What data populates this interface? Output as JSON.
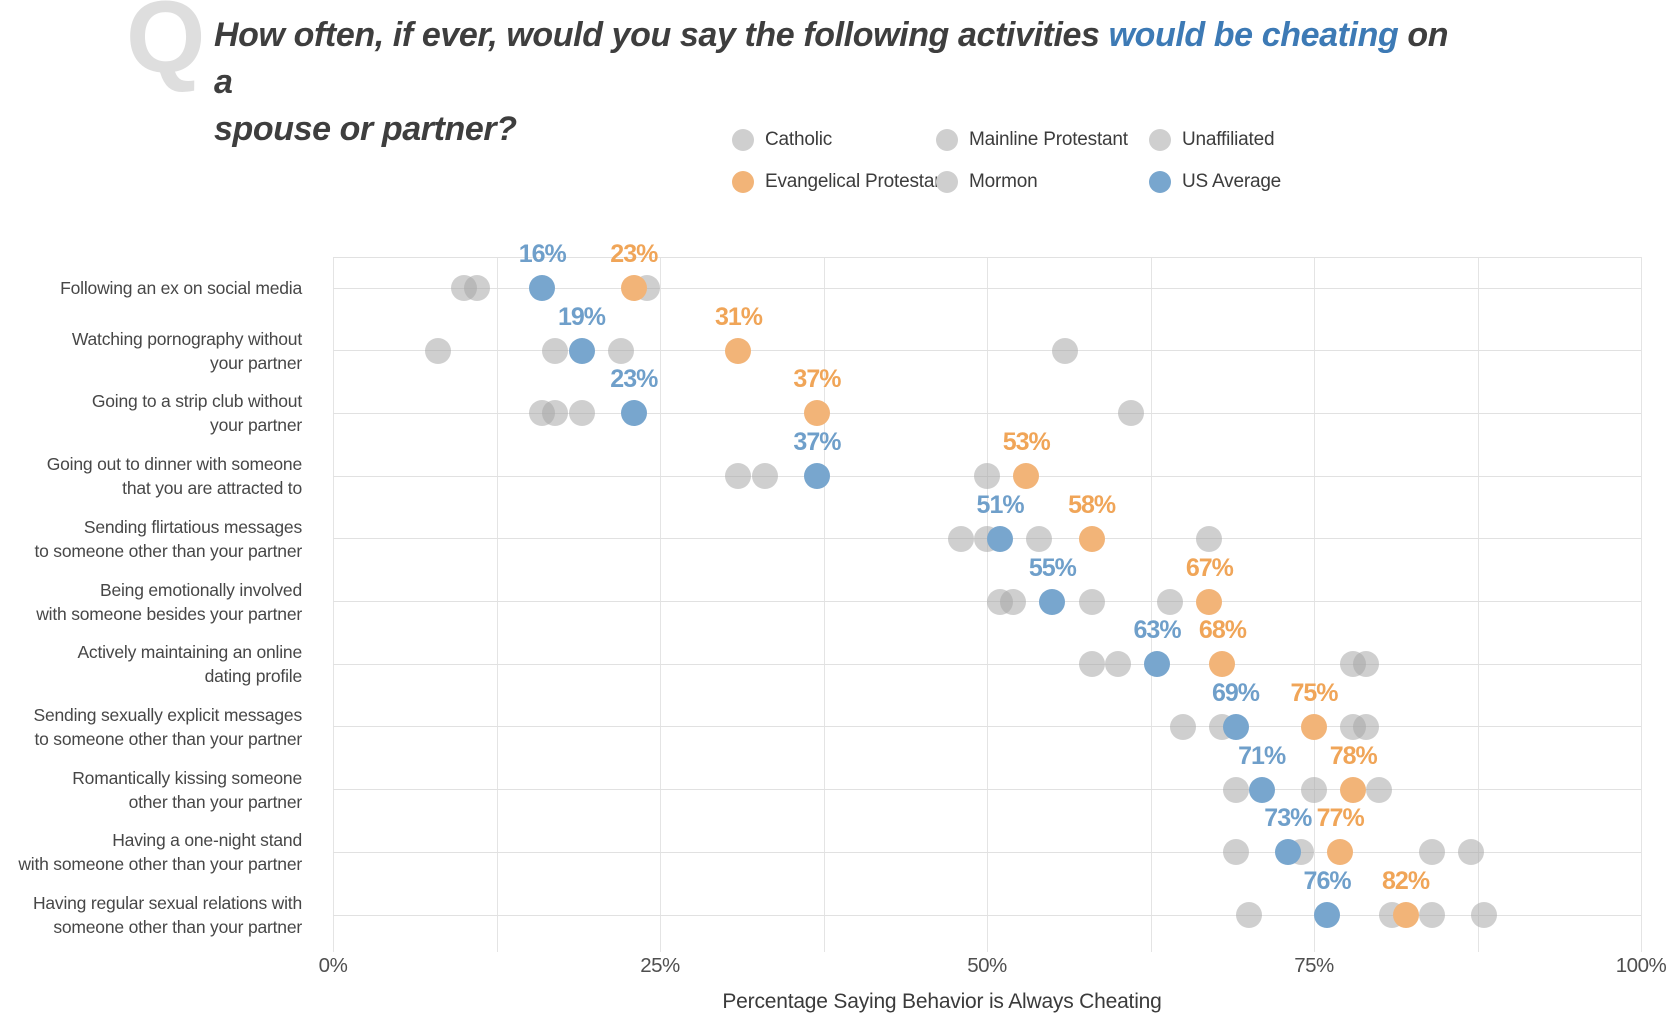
{
  "header": {
    "q_mark": "Q",
    "title_before": "How often, if ever, would you say the following activities ",
    "title_highlight": "would be cheating",
    "title_after": " on a",
    "title_line2": "spouse or partner?"
  },
  "colors": {
    "us_average_blue": "#78a6ce",
    "evangelical_orange": "#f2b478",
    "religious_group_gray": "#cfcfcf",
    "title_highlight_blue": "#3d7ab5",
    "value_label_blue": "#6f9fca",
    "value_label_orange": "#f0a558",
    "gridline": "#e4e4e4",
    "q_mark_gray": "#dedede"
  },
  "legend": {
    "items": [
      {
        "label": "Catholic",
        "color": "gray"
      },
      {
        "label": "Mainline Protestant",
        "color": "gray"
      },
      {
        "label": "Unaffiliated",
        "color": "gray"
      },
      {
        "label": "Evangelical Protestant",
        "color": "orange"
      },
      {
        "label": "Mormon",
        "color": "gray"
      },
      {
        "label": "US Average",
        "color": "blue"
      }
    ]
  },
  "chart_data": {
    "type": "scatter",
    "subtype": "dot-plot",
    "title": "How often, if ever, would you say the following activities would be cheating on a spouse or partner?",
    "xlabel": "Percentage Saying Behavior is Always Cheating",
    "xlim": [
      0,
      100
    ],
    "gridline_step_pct": 12.5,
    "grid": true,
    "legend_position": "top",
    "x_ticks": [
      {
        "label": "0%",
        "value": 0
      },
      {
        "label": "25%",
        "value": 25
      },
      {
        "label": "50%",
        "value": 50
      },
      {
        "label": "75%",
        "value": 75
      },
      {
        "label": "100%",
        "value": 100
      }
    ],
    "series_meta": [
      {
        "name": "US Average",
        "color": "blue",
        "labeled": true
      },
      {
        "name": "Evangelical Protestant",
        "color": "orange",
        "labeled": true
      },
      {
        "name": "Catholic / Mainline Protestant / Mormon / Unaffiliated",
        "color": "gray",
        "labeled": false
      }
    ],
    "rows": [
      {
        "label_lines": [
          "Following an ex on social media"
        ],
        "us_average": 16,
        "evangelical_protestant": 23,
        "gray_dot_values": [
          10,
          11,
          24
        ]
      },
      {
        "label_lines": [
          "Watching pornography without",
          "your partner"
        ],
        "us_average": 19,
        "evangelical_protestant": 31,
        "gray_dot_values": [
          8,
          17,
          22,
          56
        ]
      },
      {
        "label_lines": [
          "Going to a strip club without",
          "your partner"
        ],
        "us_average": 23,
        "evangelical_protestant": 37,
        "gray_dot_values": [
          16,
          17,
          19,
          61
        ]
      },
      {
        "label_lines": [
          "Going out to dinner with someone",
          "that you are attracted to"
        ],
        "us_average": 37,
        "evangelical_protestant": 53,
        "gray_dot_values": [
          31,
          33,
          50
        ]
      },
      {
        "label_lines": [
          "Sending flirtatious messages",
          "to someone other than your partner"
        ],
        "us_average": 51,
        "evangelical_protestant": 58,
        "gray_dot_values": [
          48,
          50,
          54,
          67
        ]
      },
      {
        "label_lines": [
          "Being emotionally involved",
          "with someone besides your partner"
        ],
        "us_average": 55,
        "evangelical_protestant": 67,
        "gray_dot_values": [
          51,
          52,
          58,
          64
        ]
      },
      {
        "label_lines": [
          "Actively maintaining an online",
          "dating profile"
        ],
        "us_average": 63,
        "evangelical_protestant": 68,
        "gray_dot_values": [
          58,
          60,
          78,
          79
        ]
      },
      {
        "label_lines": [
          "Sending sexually explicit messages",
          "to someone other than your partner"
        ],
        "us_average": 69,
        "evangelical_protestant": 75,
        "gray_dot_values": [
          65,
          68,
          78,
          79
        ]
      },
      {
        "label_lines": [
          "Romantically kissing someone",
          "other than your partner"
        ],
        "us_average": 71,
        "evangelical_protestant": 78,
        "gray_dot_values": [
          69,
          75,
          80
        ]
      },
      {
        "label_lines": [
          "Having a one-night stand",
          "with someone other than your partner"
        ],
        "us_average": 73,
        "evangelical_protestant": 77,
        "gray_dot_values": [
          69,
          74,
          84,
          87
        ]
      },
      {
        "label_lines": [
          "Having regular sexual relations with",
          "someone other than your partner"
        ],
        "us_average": 76,
        "evangelical_protestant": 82,
        "gray_dot_values": [
          70,
          81,
          84,
          88
        ]
      }
    ]
  }
}
